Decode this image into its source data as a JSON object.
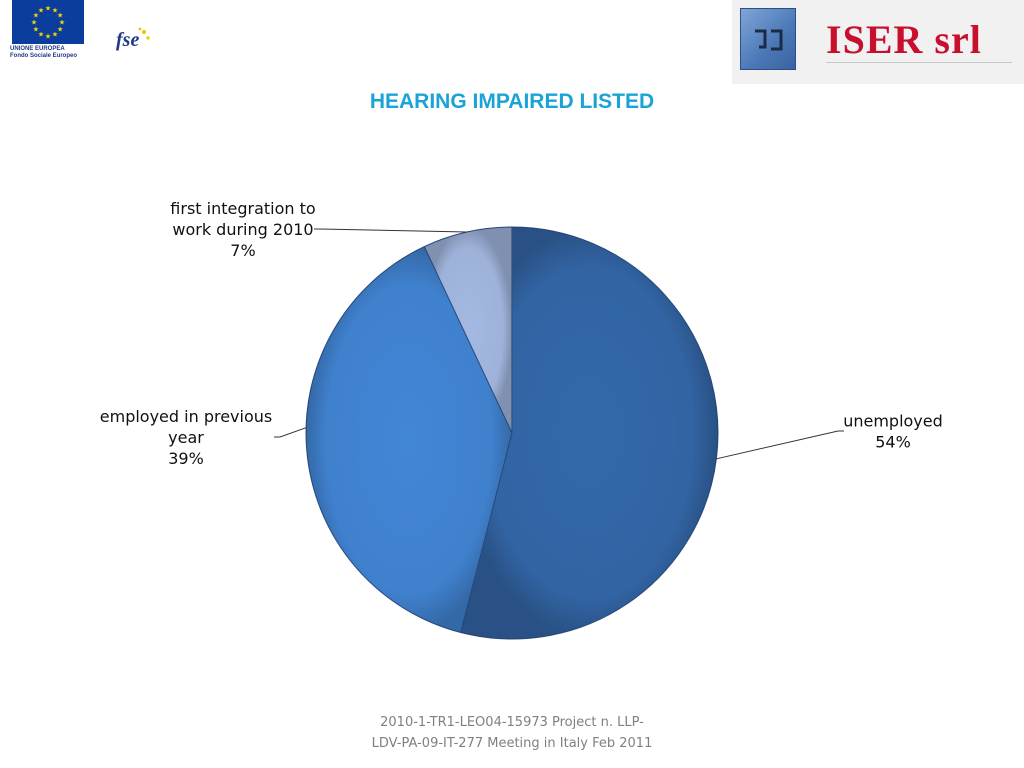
{
  "logos": {
    "eu_line1": "UNIONE EUROPEA",
    "eu_line2": "Fondo Sociale Europeo",
    "fse_text": "fse",
    "iser_name": "ISER srl"
  },
  "colors": {
    "title": "#1aa3d6",
    "brand_red": "#c8102e",
    "slices": [
      "#3468aa",
      "#4286d6",
      "#a4b9e2"
    ]
  },
  "chart_data": {
    "type": "pie",
    "title": "HEARING IMPAIRED LISTED",
    "slices": [
      {
        "label": "unemployed",
        "value": 54,
        "value_label": "54%"
      },
      {
        "label": "employed in previous year",
        "value": 39,
        "value_label": "39%"
      },
      {
        "label": "first integration to work during 2010",
        "value": 7,
        "value_label": "7%"
      }
    ]
  },
  "footer": {
    "line1": "2010-1-TR1-LEO04-15973  Project n. LLP-",
    "line2": "LDV-PA-09-IT-277 Meeting in Italy Feb 2011"
  }
}
